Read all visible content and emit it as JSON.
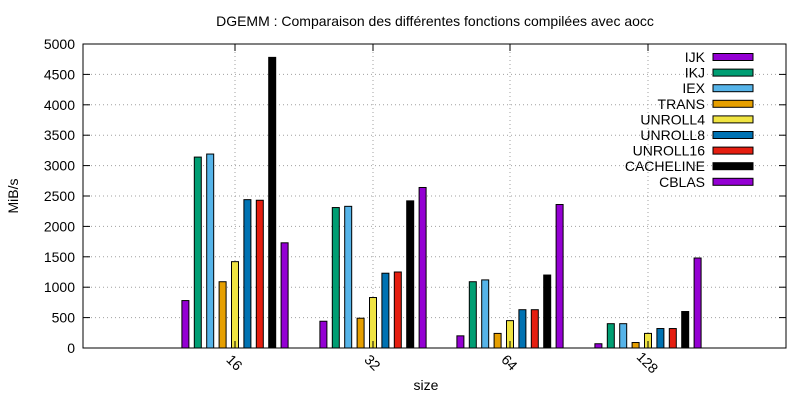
{
  "chart_data": {
    "type": "bar",
    "title": "DGEMM : Comparaison des différentes fonctions compilées avec aocc",
    "xlabel": "size",
    "ylabel": "MiB/s",
    "ylim": [
      0,
      5000
    ],
    "yticks": [
      0,
      500,
      1000,
      1500,
      2000,
      2500,
      3000,
      3500,
      4000,
      4500,
      5000
    ],
    "grid": true,
    "legend_position": "top-right",
    "categories": [
      "16",
      "32",
      "64",
      "128"
    ],
    "series": [
      {
        "name": "IJK",
        "color": "#9400d3",
        "values": [
          780,
          440,
          200,
          70
        ]
      },
      {
        "name": "IKJ",
        "color": "#009e73",
        "values": [
          3140,
          2310,
          1090,
          400
        ]
      },
      {
        "name": "IEX",
        "color": "#56b4e9",
        "values": [
          3190,
          2330,
          1120,
          400
        ]
      },
      {
        "name": "TRANS",
        "color": "#e69f00",
        "values": [
          1090,
          490,
          240,
          90
        ]
      },
      {
        "name": "UNROLL4",
        "color": "#f0e442",
        "values": [
          1420,
          830,
          450,
          240
        ]
      },
      {
        "name": "UNROLL8",
        "color": "#0072b2",
        "values": [
          2440,
          1230,
          630,
          320
        ]
      },
      {
        "name": "UNROLL16",
        "color": "#e51e10",
        "values": [
          2430,
          1250,
          630,
          320
        ]
      },
      {
        "name": "CACHELINE",
        "color": "#000000",
        "values": [
          4780,
          2420,
          1200,
          600
        ]
      },
      {
        "name": "CBLAS",
        "color": "#9400d3",
        "values": [
          1730,
          2640,
          2360,
          1480
        ]
      }
    ]
  }
}
